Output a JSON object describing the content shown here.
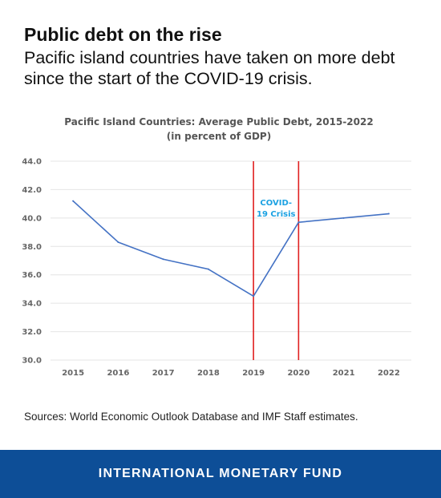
{
  "header": {
    "headline": "Public debt on the rise",
    "subhead": "Pacific island countries have taken on more debt since the start of the COVID-19 crisis."
  },
  "chart_data": {
    "type": "line",
    "title": "Pacific Island Countries: Average Public Debt, 2015-2022",
    "subtitle": "(in percent of GDP)",
    "categories": [
      "2015",
      "2016",
      "2017",
      "2018",
      "2019",
      "2020",
      "2021",
      "2022"
    ],
    "series": [
      {
        "values": [
          41.2,
          38.3,
          37.1,
          36.4,
          34.5,
          39.7,
          40.0,
          40.3
        ]
      }
    ],
    "y_tick_labels": [
      "30.0",
      "32.0",
      "34.0",
      "36.0",
      "38.0",
      "40.0",
      "42.0",
      "44.0"
    ],
    "ylim": [
      30,
      44
    ],
    "grid": true,
    "annotation": {
      "lines": [
        "COVID-",
        "19 Crisis"
      ],
      "between": [
        "2019",
        "2020"
      ]
    },
    "colors": {
      "line": "#4472c4",
      "marker_lines": "#e02020",
      "annotation": "#1ba1e2",
      "grid": "#e4e4e4"
    }
  },
  "sources": "Sources: World Economic Outlook Database and IMF Staff estimates.",
  "footer": {
    "label": "INTERNATIONAL MONETARY FUND",
    "background": "#0d4e97"
  }
}
